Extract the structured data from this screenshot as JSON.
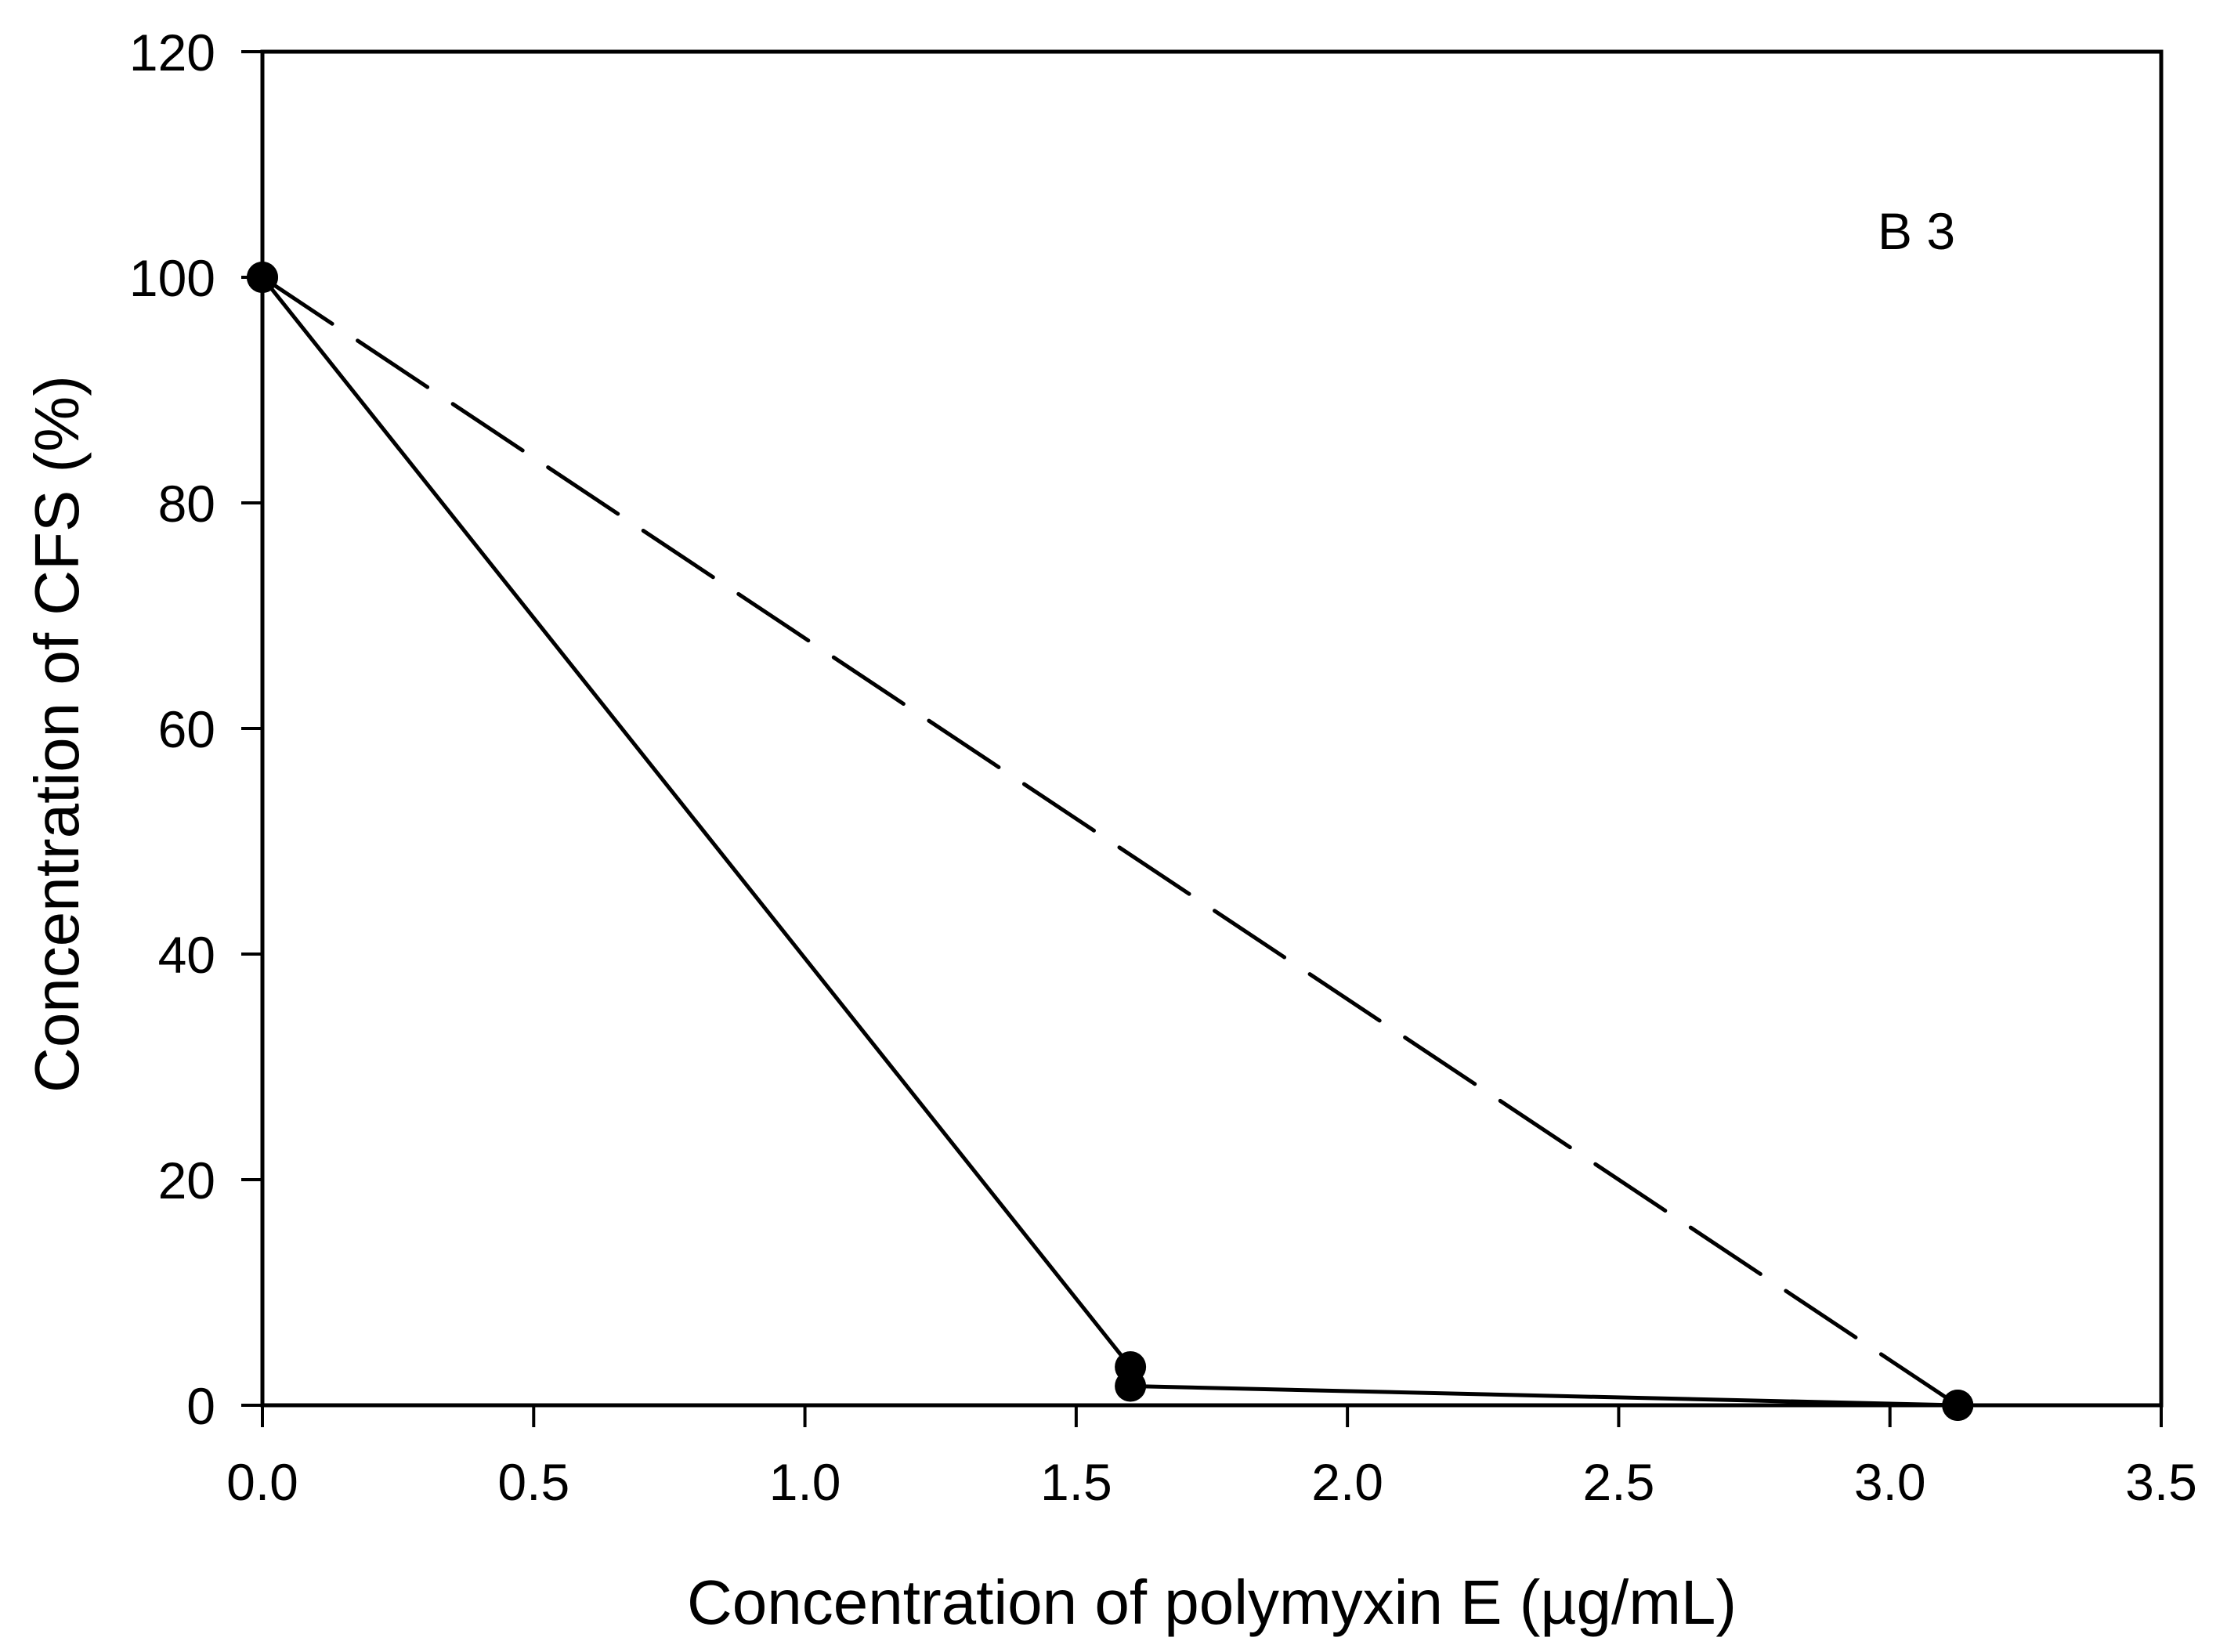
{
  "chart_data": {
    "type": "line",
    "title": "",
    "annotation": "B 3",
    "xlabel": "Concentration of polymyxin E (µg/mL)",
    "ylabel": "Concentration of CFS (%)",
    "xlim": [
      0,
      3.5
    ],
    "ylim": [
      0,
      120
    ],
    "xticks": [
      "0.0",
      "0.5",
      "1.0",
      "1.5",
      "2.0",
      "2.5",
      "3.0",
      "3.5"
    ],
    "yticks": [
      "0",
      "20",
      "40",
      "60",
      "80",
      "100",
      "120"
    ],
    "grid": false,
    "legend": null,
    "series": [
      {
        "name": "solid",
        "style": "solid",
        "marker": "filled-circle",
        "color": "#000000",
        "points": [
          [
            0.0,
            100
          ],
          [
            1.6,
            3.4
          ],
          [
            1.6,
            1.7
          ],
          [
            3.125,
            0
          ]
        ]
      },
      {
        "name": "dashed",
        "style": "dashed",
        "marker": "filled-circle",
        "color": "#000000",
        "points": [
          [
            0.0,
            100
          ],
          [
            3.125,
            0
          ]
        ]
      }
    ]
  }
}
